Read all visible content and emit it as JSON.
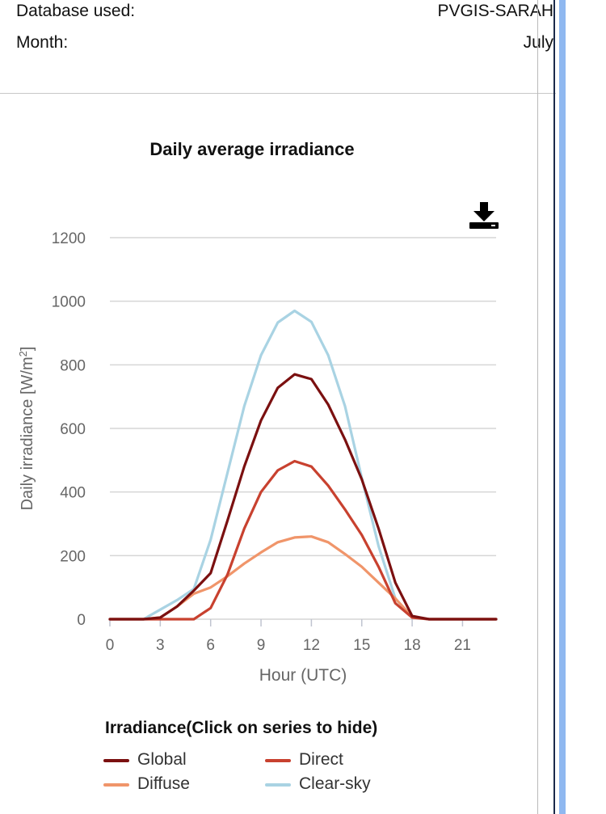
{
  "info": {
    "database_label": "Database used:",
    "database_value": "PVGIS-SARAH",
    "month_label": "Month:",
    "month_value": "July"
  },
  "download_icon": "download-icon",
  "legend_title": "Irradiance(Click on series to hide)",
  "chart_data": {
    "type": "line",
    "title": "Daily average irradiance",
    "xlabel": "Hour (UTC)",
    "ylabel": "Daily irradiance [W/m²]",
    "xlim": [
      0,
      23
    ],
    "ylim": [
      0,
      1200
    ],
    "xticks": [
      0,
      3,
      6,
      9,
      12,
      15,
      18,
      21
    ],
    "yticks": [
      0,
      200,
      400,
      600,
      800,
      1000,
      1200
    ],
    "grid": true,
    "legend_position": "bottom",
    "x": [
      0,
      1,
      2,
      3,
      4,
      5,
      6,
      7,
      8,
      9,
      10,
      11,
      12,
      13,
      14,
      15,
      16,
      17,
      18,
      19,
      20,
      21,
      22,
      23
    ],
    "series": [
      {
        "name": "Global",
        "color": "#7b1010",
        "values": [
          0,
          0,
          0,
          5,
          40,
          90,
          145,
          310,
          480,
          625,
          728,
          770,
          755,
          675,
          565,
          440,
          285,
          115,
          10,
          0,
          0,
          0,
          0,
          0
        ]
      },
      {
        "name": "Direct",
        "color": "#c8412f",
        "values": [
          0,
          0,
          0,
          0,
          0,
          0,
          35,
          140,
          285,
          400,
          468,
          497,
          480,
          420,
          345,
          265,
          165,
          50,
          5,
          0,
          0,
          0,
          0,
          0
        ]
      },
      {
        "name": "Diffuse",
        "color": "#f0956a",
        "values": [
          0,
          0,
          0,
          5,
          40,
          80,
          100,
          135,
          175,
          210,
          242,
          257,
          260,
          242,
          205,
          165,
          115,
          65,
          8,
          0,
          0,
          0,
          0,
          0
        ]
      },
      {
        "name": "Clear-sky",
        "color": "#a9d3e3",
        "values": [
          0,
          0,
          0,
          30,
          60,
          95,
          250,
          460,
          670,
          830,
          933,
          970,
          935,
          830,
          670,
          445,
          230,
          65,
          5,
          0,
          0,
          0,
          0,
          0
        ]
      }
    ]
  }
}
